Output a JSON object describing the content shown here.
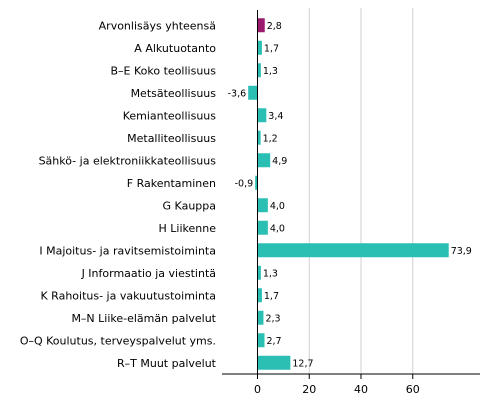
{
  "chart_data": {
    "type": "bar",
    "orientation": "horizontal",
    "categories": [
      "Arvonlisäys yhteensä",
      "A Alkutuotanto",
      "B–E Koko teollisuus",
      "Metsäteollisuus",
      "Kemianteollisuus",
      "Metalliteollisuus",
      "Sähkö- ja elektroniikkateollisuus",
      "F Rakentaminen",
      "G Kauppa",
      "H Liikenne",
      "I Majoitus- ja ravitsemistoiminta",
      "J Informaatio ja viestintä",
      "K Rahoitus- ja vakuutustoiminta",
      "M–N Liike-elämän palvelut",
      "O–Q Koulutus, terveyspalvelut yms.",
      "R–T Muut palvelut"
    ],
    "values": [
      2.8,
      1.7,
      1.3,
      -3.6,
      3.4,
      1.2,
      4.9,
      -0.9,
      4.0,
      4.0,
      73.9,
      1.3,
      1.7,
      2.3,
      2.7,
      12.7
    ],
    "value_labels": [
      "2,8",
      "1,7",
      "1,3",
      "-3,6",
      "3,4",
      "1,2",
      "4,9",
      "-0,9",
      "4,0",
      "4,0",
      "73,9",
      "1,3",
      "1,7",
      "2,3",
      "2,7",
      "12,7"
    ],
    "highlight_index": 0,
    "xlim": [
      -10,
      76
    ],
    "xticks": [
      0,
      20,
      40,
      60
    ],
    "xtick_labels": [
      "0",
      "20",
      "40",
      "60"
    ],
    "grid": true,
    "title": "",
    "xlabel": "",
    "ylabel": "",
    "colors": {
      "bar": "#2bbfb3",
      "highlight": "#9a1a6e",
      "grid": "#d0d0d0",
      "axis": "#000000"
    }
  }
}
